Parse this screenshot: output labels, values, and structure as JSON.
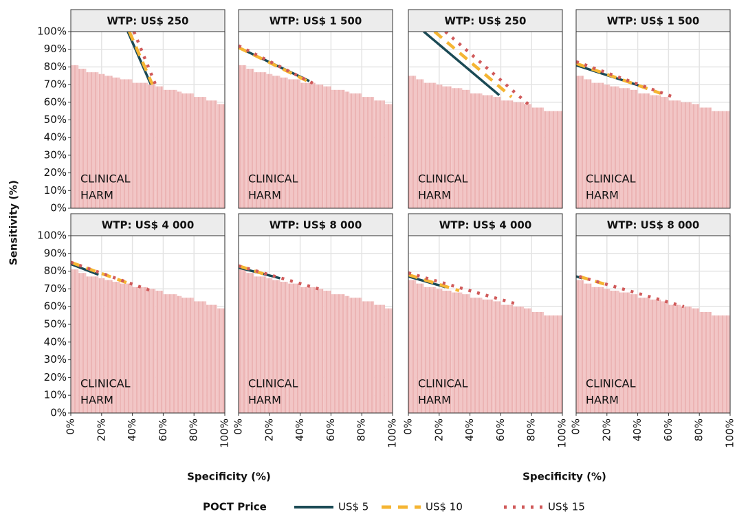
{
  "chart_data": {
    "type": "line",
    "xlabel": "Specificity (%)",
    "ylabel": "Sensitivity (%)",
    "xlim": [
      0,
      100
    ],
    "ylim": [
      0,
      100
    ],
    "xticks": [
      {
        "value": 0,
        "label": "0%"
      },
      {
        "value": 20,
        "label": "20%"
      },
      {
        "value": 40,
        "label": "40%"
      },
      {
        "value": 60,
        "label": "60%"
      },
      {
        "value": 80,
        "label": "80%"
      },
      {
        "value": 100,
        "label": "100%"
      }
    ],
    "yticks": [
      {
        "value": 0,
        "label": "0%"
      },
      {
        "value": 10,
        "label": "10%"
      },
      {
        "value": 20,
        "label": "20%"
      },
      {
        "value": 30,
        "label": "30%"
      },
      {
        "value": 40,
        "label": "40%"
      },
      {
        "value": 50,
        "label": "50%"
      },
      {
        "value": 60,
        "label": "60%"
      },
      {
        "value": 70,
        "label": "70%"
      },
      {
        "value": 80,
        "label": "80%"
      },
      {
        "value": 90,
        "label": "90%"
      },
      {
        "value": 100,
        "label": "100%"
      }
    ],
    "grid": true,
    "annotation": [
      "CLINICAL",
      "HARM"
    ],
    "legend_title": "POCT Price",
    "series": [
      {
        "name": "US$ 5",
        "color": "#1b4a55",
        "linestyle": "solid"
      },
      {
        "name": "US$ 10",
        "color": "#f5b533",
        "linestyle": "dashed"
      },
      {
        "name": "US$ 15",
        "color": "#d05a5a",
        "linestyle": "dotted"
      }
    ],
    "panels": [
      {
        "title": "WTP: US$ 250",
        "harm": {
          "x": [
            0,
            5,
            10,
            18,
            22,
            27,
            32,
            40,
            50,
            55,
            60,
            69,
            72,
            80,
            88,
            95
          ],
          "values": [
            81,
            79,
            77,
            76,
            75,
            74,
            73,
            71,
            70,
            69,
            67,
            66,
            65,
            63,
            61,
            59
          ]
        },
        "lines": [
          {
            "x": [
              37,
              52
            ],
            "values": [
              100,
              70
            ]
          },
          {
            "x": [
              38,
              53
            ],
            "values": [
              100,
              70
            ]
          },
          {
            "x": [
              41,
              55
            ],
            "values": [
              100,
              70
            ]
          }
        ]
      },
      {
        "title": "WTP: US$ 1 500",
        "harm": {
          "x": [
            0,
            5,
            10,
            18,
            22,
            27,
            32,
            40,
            50,
            55,
            60,
            69,
            72,
            80,
            88,
            95
          ],
          "values": [
            81,
            79,
            77,
            76,
            75,
            74,
            73,
            71,
            70,
            69,
            67,
            66,
            65,
            63,
            61,
            59
          ]
        },
        "lines": [
          {
            "x": [
              0,
              46
            ],
            "values": [
              91,
              72
            ]
          },
          {
            "x": [
              0,
              47
            ],
            "values": [
              91,
              71
            ]
          },
          {
            "x": [
              0,
              50
            ],
            "values": [
              92,
              70
            ]
          }
        ]
      },
      {
        "title": "WTP: US$ 250",
        "harm": {
          "x": [
            0,
            5,
            10,
            18,
            22,
            28,
            35,
            40,
            48,
            55,
            60,
            68,
            75,
            80,
            88
          ],
          "values": [
            75,
            73,
            71,
            70,
            69,
            68,
            67,
            65,
            64,
            63,
            61,
            60,
            59,
            57,
            55
          ]
        },
        "lines": [
          {
            "x": [
              10,
              59
            ],
            "values": [
              100,
              64
            ]
          },
          {
            "x": [
              17,
              67
            ],
            "values": [
              100,
              63
            ]
          },
          {
            "x": [
              24,
              79
            ],
            "values": [
              100,
              58
            ]
          }
        ]
      },
      {
        "title": "WTP: US$ 1 500",
        "harm": {
          "x": [
            0,
            5,
            10,
            18,
            22,
            28,
            35,
            40,
            48,
            55,
            60,
            68,
            75,
            80,
            88
          ],
          "values": [
            75,
            73,
            71,
            70,
            69,
            68,
            67,
            65,
            64,
            63,
            61,
            60,
            59,
            57,
            55
          ]
        },
        "lines": [
          {
            "x": [
              0,
              46
            ],
            "values": [
              81,
              68
            ]
          },
          {
            "x": [
              0,
              55
            ],
            "values": [
              82,
              65
            ]
          },
          {
            "x": [
              0,
              63
            ],
            "values": [
              83,
              63
            ]
          }
        ]
      },
      {
        "title": "WTP: US$ 4 000",
        "harm": {
          "x": [
            0,
            5,
            10,
            18,
            22,
            27,
            32,
            40,
            50,
            55,
            60,
            69,
            72,
            80,
            88,
            95
          ],
          "values": [
            81,
            79,
            77,
            76,
            75,
            74,
            73,
            71,
            70,
            69,
            67,
            66,
            65,
            63,
            61,
            59
          ]
        },
        "lines": [
          {
            "x": [
              0,
              18
            ],
            "values": [
              84,
              78
            ]
          },
          {
            "x": [
              0,
              38
            ],
            "values": [
              85,
              73
            ]
          },
          {
            "x": [
              0,
              52
            ],
            "values": [
              85,
              69
            ]
          }
        ]
      },
      {
        "title": "WTP: US$ 8 000",
        "harm": {
          "x": [
            0,
            5,
            10,
            18,
            22,
            27,
            32,
            40,
            50,
            55,
            60,
            69,
            72,
            80,
            88,
            95
          ],
          "values": [
            81,
            79,
            77,
            76,
            75,
            74,
            73,
            71,
            70,
            69,
            67,
            66,
            65,
            63,
            61,
            59
          ]
        },
        "lines": [
          {
            "x": [
              0,
              27
            ],
            "values": [
              82,
              76
            ]
          },
          {
            "x": [
              0,
              18
            ],
            "values": [
              83,
              78
            ]
          },
          {
            "x": [
              0,
              52
            ],
            "values": [
              83,
              70
            ]
          }
        ]
      },
      {
        "title": "WTP: US$ 4 000",
        "harm": {
          "x": [
            0,
            5,
            10,
            18,
            22,
            28,
            35,
            40,
            48,
            55,
            60,
            68,
            75,
            80,
            88
          ],
          "values": [
            75,
            73,
            71,
            70,
            69,
            68,
            67,
            65,
            64,
            63,
            61,
            60,
            59,
            57,
            55
          ]
        },
        "lines": [
          {
            "x": [
              0,
              24
            ],
            "values": [
              77,
              71
            ]
          },
          {
            "x": [
              0,
              33
            ],
            "values": [
              78,
              69
            ]
          },
          {
            "x": [
              0,
              72
            ],
            "values": [
              79,
              61
            ]
          }
        ]
      },
      {
        "title": "WTP: US$ 8 000",
        "harm": {
          "x": [
            0,
            5,
            10,
            18,
            22,
            28,
            35,
            40,
            48,
            55,
            60,
            68,
            75,
            80,
            88
          ],
          "values": [
            75,
            73,
            71,
            70,
            69,
            68,
            67,
            65,
            64,
            63,
            61,
            60,
            59,
            57,
            55
          ]
        },
        "lines": [
          {
            "x": [
              0,
              4
            ],
            "values": [
              77,
              76
            ]
          },
          {
            "x": [
              2,
              21
            ],
            "values": [
              77,
              72
            ]
          },
          {
            "x": [
              2,
              70
            ],
            "values": [
              77,
              60
            ]
          }
        ]
      }
    ]
  }
}
